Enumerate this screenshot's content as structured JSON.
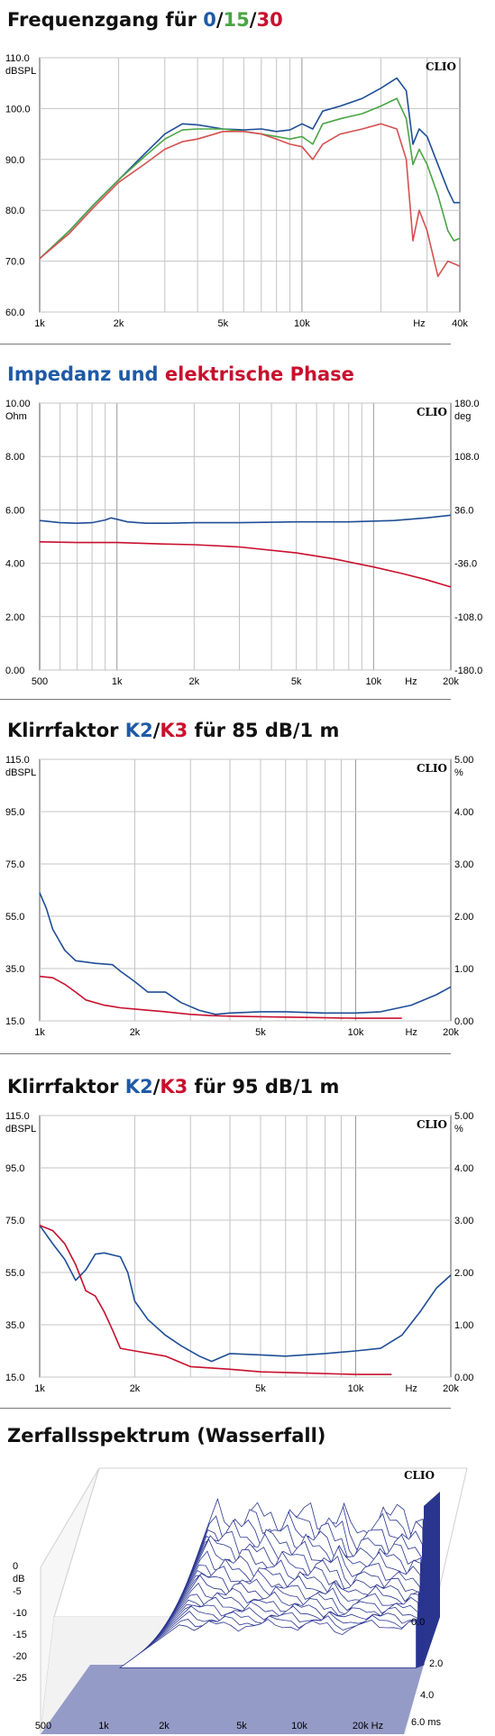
{
  "sections": [
    {
      "title_parts": [
        {
          "text": "Frequenzgang für ",
          "color": "#111111"
        },
        {
          "text": "0",
          "color": "#1f5aa6"
        },
        {
          "text": "/",
          "color": "#111111"
        },
        {
          "text": "15",
          "color": "#4aa545"
        },
        {
          "text": "/",
          "color": "#111111"
        },
        {
          "text": "30",
          "color": "#c8102e"
        }
      ]
    },
    {
      "title_parts": [
        {
          "text": "Impedanz und ",
          "color": "#1f5aa6"
        },
        {
          "text": "elektrische Phase",
          "color": "#c8102e"
        }
      ]
    },
    {
      "title_parts": [
        {
          "text": "Klirrfaktor ",
          "color": "#111111"
        },
        {
          "text": "K2",
          "color": "#1f5aa6"
        },
        {
          "text": "/",
          "color": "#111111"
        },
        {
          "text": "K3",
          "color": "#c8102e"
        },
        {
          "text": " für 85 dB/1 m",
          "color": "#111111"
        }
      ]
    },
    {
      "title_parts": [
        {
          "text": "Klirrfaktor ",
          "color": "#111111"
        },
        {
          "text": "K2",
          "color": "#1f5aa6"
        },
        {
          "text": "/",
          "color": "#111111"
        },
        {
          "text": "K3",
          "color": "#c8102e"
        },
        {
          "text": " für 95 dB/1 m",
          "color": "#111111"
        }
      ]
    },
    {
      "title_parts": [
        {
          "text": "Zerfallsspektrum (Wasserfall)",
          "color": "#111111"
        }
      ]
    }
  ],
  "chart_data": [
    {
      "type": "line",
      "brand": "CLIO",
      "x_scale": "log",
      "xlim": [
        1000,
        40000
      ],
      "ylim": [
        60,
        110
      ],
      "unit_label": "dBSPL",
      "x_ticks": [
        {
          "v": 1000,
          "label": "1k"
        },
        {
          "v": 2000,
          "label": "2k"
        },
        {
          "v": 5000,
          "label": "5k"
        },
        {
          "v": 10000,
          "label": "10k"
        },
        {
          "v": 28000,
          "label": "Hz"
        },
        {
          "v": 40000,
          "label": "40k"
        }
      ],
      "y_ticks": [
        {
          "v": 110,
          "label": "110.0"
        },
        {
          "v": 100,
          "label": "100.0"
        },
        {
          "v": 90,
          "label": "90.0"
        },
        {
          "v": 80,
          "label": "80.0"
        },
        {
          "v": 70,
          "label": "70.0"
        },
        {
          "v": 60,
          "label": "60.0"
        }
      ],
      "series": [
        {
          "name": "0",
          "color": "#1f4e96",
          "x": [
            1000,
            1300,
            1600,
            2000,
            2500,
            3000,
            3500,
            4000,
            5000,
            6000,
            7000,
            8000,
            9000,
            10000,
            11000,
            12000,
            14000,
            17000,
            20000,
            23000,
            25000,
            26500,
            28000,
            30000,
            33000,
            36000,
            38000,
            40000
          ],
          "y": [
            70.5,
            76,
            81,
            86,
            91,
            95,
            97,
            96.8,
            96,
            95.8,
            96,
            95.5,
            95.8,
            97,
            96,
            99.5,
            100.5,
            102,
            104,
            106,
            103.5,
            93,
            96,
            94.5,
            89,
            84,
            81.5,
            81.5
          ]
        },
        {
          "name": "15",
          "color": "#4aa545",
          "x": [
            1000,
            1300,
            1600,
            2000,
            2500,
            3000,
            3500,
            4000,
            5000,
            6000,
            7000,
            8000,
            9000,
            10000,
            11000,
            12000,
            14000,
            17000,
            20000,
            23000,
            25000,
            26500,
            28000,
            30000,
            33000,
            36000,
            38000,
            40000
          ],
          "y": [
            70.5,
            76,
            81,
            86,
            90.5,
            94,
            95.8,
            96,
            96,
            95.5,
            95,
            94.5,
            94,
            94.5,
            93,
            97,
            98,
            99,
            100.5,
            102,
            98,
            89,
            92,
            89,
            83,
            76,
            74,
            74.5
          ]
        },
        {
          "name": "30",
          "color": "#d65050",
          "x": [
            1000,
            1300,
            1600,
            2000,
            2500,
            3000,
            3500,
            4000,
            5000,
            6000,
            7000,
            8000,
            9000,
            10000,
            11000,
            12000,
            14000,
            17000,
            20000,
            23000,
            25000,
            26500,
            28000,
            30000,
            33000,
            36000,
            38000,
            40000
          ],
          "y": [
            70.5,
            75.5,
            80.5,
            85.5,
            89,
            92,
            93.5,
            94,
            95.5,
            95.5,
            95,
            94,
            93,
            92.5,
            90,
            93,
            95,
            96,
            97,
            96,
            90,
            74,
            80,
            76,
            67,
            70,
            69.5,
            69
          ]
        }
      ]
    },
    {
      "type": "line",
      "brand": "CLIO",
      "x_scale": "log",
      "xlim": [
        500,
        20000
      ],
      "ylim": [
        0,
        10
      ],
      "y2lim": [
        -180,
        180
      ],
      "unit_label": "Ohm",
      "unit_label_right": "deg",
      "x_ticks": [
        {
          "v": 500,
          "label": "500"
        },
        {
          "v": 1000,
          "label": "1k"
        },
        {
          "v": 2000,
          "label": "2k"
        },
        {
          "v": 5000,
          "label": "5k"
        },
        {
          "v": 10000,
          "label": "10k"
        },
        {
          "v": 14000,
          "label": "Hz"
        },
        {
          "v": 20000,
          "label": "20k"
        }
      ],
      "y_ticks": [
        {
          "v": 10,
          "label": "10.00"
        },
        {
          "v": 8,
          "label": "8.00"
        },
        {
          "v": 6,
          "label": "6.00"
        },
        {
          "v": 4,
          "label": "4.00"
        },
        {
          "v": 2,
          "label": "2.00"
        },
        {
          "v": 0,
          "label": "0.00"
        }
      ],
      "y2_ticks": [
        {
          "v": 180,
          "label": "180.0"
        },
        {
          "v": 108,
          "label": "108.0"
        },
        {
          "v": 36,
          "label": "36.0"
        },
        {
          "v": -36,
          "label": "-36.0"
        },
        {
          "v": -108,
          "label": "-108.0"
        },
        {
          "v": -180,
          "label": "-180.0"
        }
      ],
      "series": [
        {
          "name": "Impedanz",
          "color": "#1f4e96",
          "axis": "left",
          "x": [
            500,
            600,
            700,
            800,
            900,
            950,
            1000,
            1100,
            1300,
            1600,
            2000,
            3000,
            5000,
            8000,
            12000,
            16000,
            20000
          ],
          "y": [
            5.6,
            5.52,
            5.5,
            5.52,
            5.62,
            5.7,
            5.65,
            5.55,
            5.5,
            5.5,
            5.52,
            5.52,
            5.55,
            5.55,
            5.6,
            5.7,
            5.8
          ]
        },
        {
          "name": "Phase",
          "color": "#c8102e",
          "axis": "right",
          "x": [
            500,
            700,
            900,
            1000,
            1500,
            2000,
            3000,
            5000,
            7000,
            10000,
            13000,
            16000,
            20000
          ],
          "y": [
            -7,
            -8,
            -8,
            -8,
            -10,
            -11,
            -14,
            -22,
            -30,
            -41,
            -50,
            -58,
            -68
          ]
        }
      ]
    },
    {
      "type": "line",
      "brand": "CLIO",
      "x_scale": "log",
      "xlim": [
        1000,
        20000
      ],
      "ylim": [
        15,
        115
      ],
      "y2lim": [
        0,
        5
      ],
      "unit_label": "dBSPL",
      "unit_label_right": "%",
      "x_ticks": [
        {
          "v": 1000,
          "label": "1k"
        },
        {
          "v": 2000,
          "label": "2k"
        },
        {
          "v": 5000,
          "label": "5k"
        },
        {
          "v": 10000,
          "label": "10k"
        },
        {
          "v": 15000,
          "label": "Hz"
        },
        {
          "v": 20000,
          "label": "20k"
        }
      ],
      "y_ticks": [
        {
          "v": 115,
          "label": "115.0"
        },
        {
          "v": 95,
          "label": "95.0"
        },
        {
          "v": 75,
          "label": "75.0"
        },
        {
          "v": 55,
          "label": "55.0"
        },
        {
          "v": 35,
          "label": "35.0"
        },
        {
          "v": 15,
          "label": "15.0"
        }
      ],
      "y2_ticks": [
        {
          "v": 5,
          "label": "5.00"
        },
        {
          "v": 4,
          "label": "4.00"
        },
        {
          "v": 3,
          "label": "3.00"
        },
        {
          "v": 2,
          "label": "2.00"
        },
        {
          "v": 1,
          "label": "1.00"
        },
        {
          "v": 0,
          "label": "0.00"
        }
      ],
      "series": [
        {
          "name": "K2",
          "color": "#1f4e96",
          "x": [
            1000,
            1050,
            1100,
            1200,
            1300,
            1500,
            1700,
            1800,
            2000,
            2200,
            2500,
            2800,
            3200,
            3600,
            4000,
            5000,
            6000,
            8000,
            10000,
            12000,
            15000,
            18000,
            20000
          ],
          "y": [
            64,
            58,
            50,
            42,
            38,
            37,
            36.5,
            34,
            30,
            26,
            26,
            22,
            19,
            17.5,
            18,
            18.5,
            18.5,
            18,
            18,
            18.5,
            21,
            25,
            28
          ]
        },
        {
          "name": "K3",
          "color": "#c8102e",
          "x": [
            1000,
            1100,
            1200,
            1300,
            1400,
            1600,
            1800,
            2000,
            2500,
            3000,
            3500,
            4000,
            5000,
            7000,
            10000,
            14000
          ],
          "y": [
            32,
            31.5,
            29,
            26,
            23,
            21,
            20,
            19.5,
            18.5,
            17.5,
            17,
            16.8,
            16.6,
            16.3,
            16,
            16
          ]
        }
      ]
    },
    {
      "type": "line",
      "brand": "CLIO",
      "x_scale": "log",
      "xlim": [
        1000,
        20000
      ],
      "ylim": [
        15,
        115
      ],
      "y2lim": [
        0,
        5
      ],
      "unit_label": "dBSPL",
      "unit_label_right": "%",
      "x_ticks": [
        {
          "v": 1000,
          "label": "1k"
        },
        {
          "v": 2000,
          "label": "2k"
        },
        {
          "v": 5000,
          "label": "5k"
        },
        {
          "v": 10000,
          "label": "10k"
        },
        {
          "v": 15000,
          "label": "Hz"
        },
        {
          "v": 20000,
          "label": "20k"
        }
      ],
      "y_ticks": [
        {
          "v": 115,
          "label": "115.0"
        },
        {
          "v": 95,
          "label": "95.0"
        },
        {
          "v": 75,
          "label": "75.0"
        },
        {
          "v": 55,
          "label": "55.0"
        },
        {
          "v": 35,
          "label": "35.0"
        },
        {
          "v": 15,
          "label": "15.0"
        }
      ],
      "y2_ticks": [
        {
          "v": 5,
          "label": "5.00"
        },
        {
          "v": 4,
          "label": "4.00"
        },
        {
          "v": 3,
          "label": "3.00"
        },
        {
          "v": 2,
          "label": "2.00"
        },
        {
          "v": 1,
          "label": "1.00"
        },
        {
          "v": 0,
          "label": "0.00"
        }
      ],
      "series": [
        {
          "name": "K2",
          "color": "#1f4e96",
          "x": [
            1000,
            1100,
            1200,
            1300,
            1400,
            1500,
            1600,
            1800,
            1900,
            2000,
            2200,
            2500,
            2800,
            3200,
            3500,
            4000,
            5000,
            6000,
            8000,
            10000,
            12000,
            14000,
            16000,
            18000,
            20000
          ],
          "y": [
            73,
            66,
            60,
            52,
            56,
            62,
            62.5,
            61,
            55,
            44,
            37,
            31,
            27,
            23,
            21,
            24,
            23.5,
            23,
            24,
            25,
            26,
            31,
            40,
            49,
            54
          ]
        },
        {
          "name": "K3",
          "color": "#c8102e",
          "x": [
            1000,
            1100,
            1200,
            1300,
            1400,
            1500,
            1600,
            1700,
            1800,
            2000,
            2500,
            3000,
            4000,
            5000,
            7000,
            10000,
            13000
          ],
          "y": [
            73,
            71,
            66,
            58,
            48,
            46,
            40,
            33,
            26,
            25,
            23,
            19,
            18,
            17,
            16.5,
            16,
            16
          ]
        }
      ]
    },
    {
      "type": "area",
      "brand": "CLIO",
      "description_axes": "waterfall",
      "x_labels": [
        "500",
        "1k",
        "2k",
        "5k",
        "10k",
        "20k Hz"
      ],
      "z_labels": [
        "0.0",
        "2.0",
        "4.0",
        "6.0 ms"
      ],
      "y_labels": [
        "0",
        "dB",
        "-5",
        "-10",
        "-15",
        "-20",
        "-25"
      ],
      "fill_color": "#8f96c4",
      "line_color": "#2a3590"
    }
  ]
}
